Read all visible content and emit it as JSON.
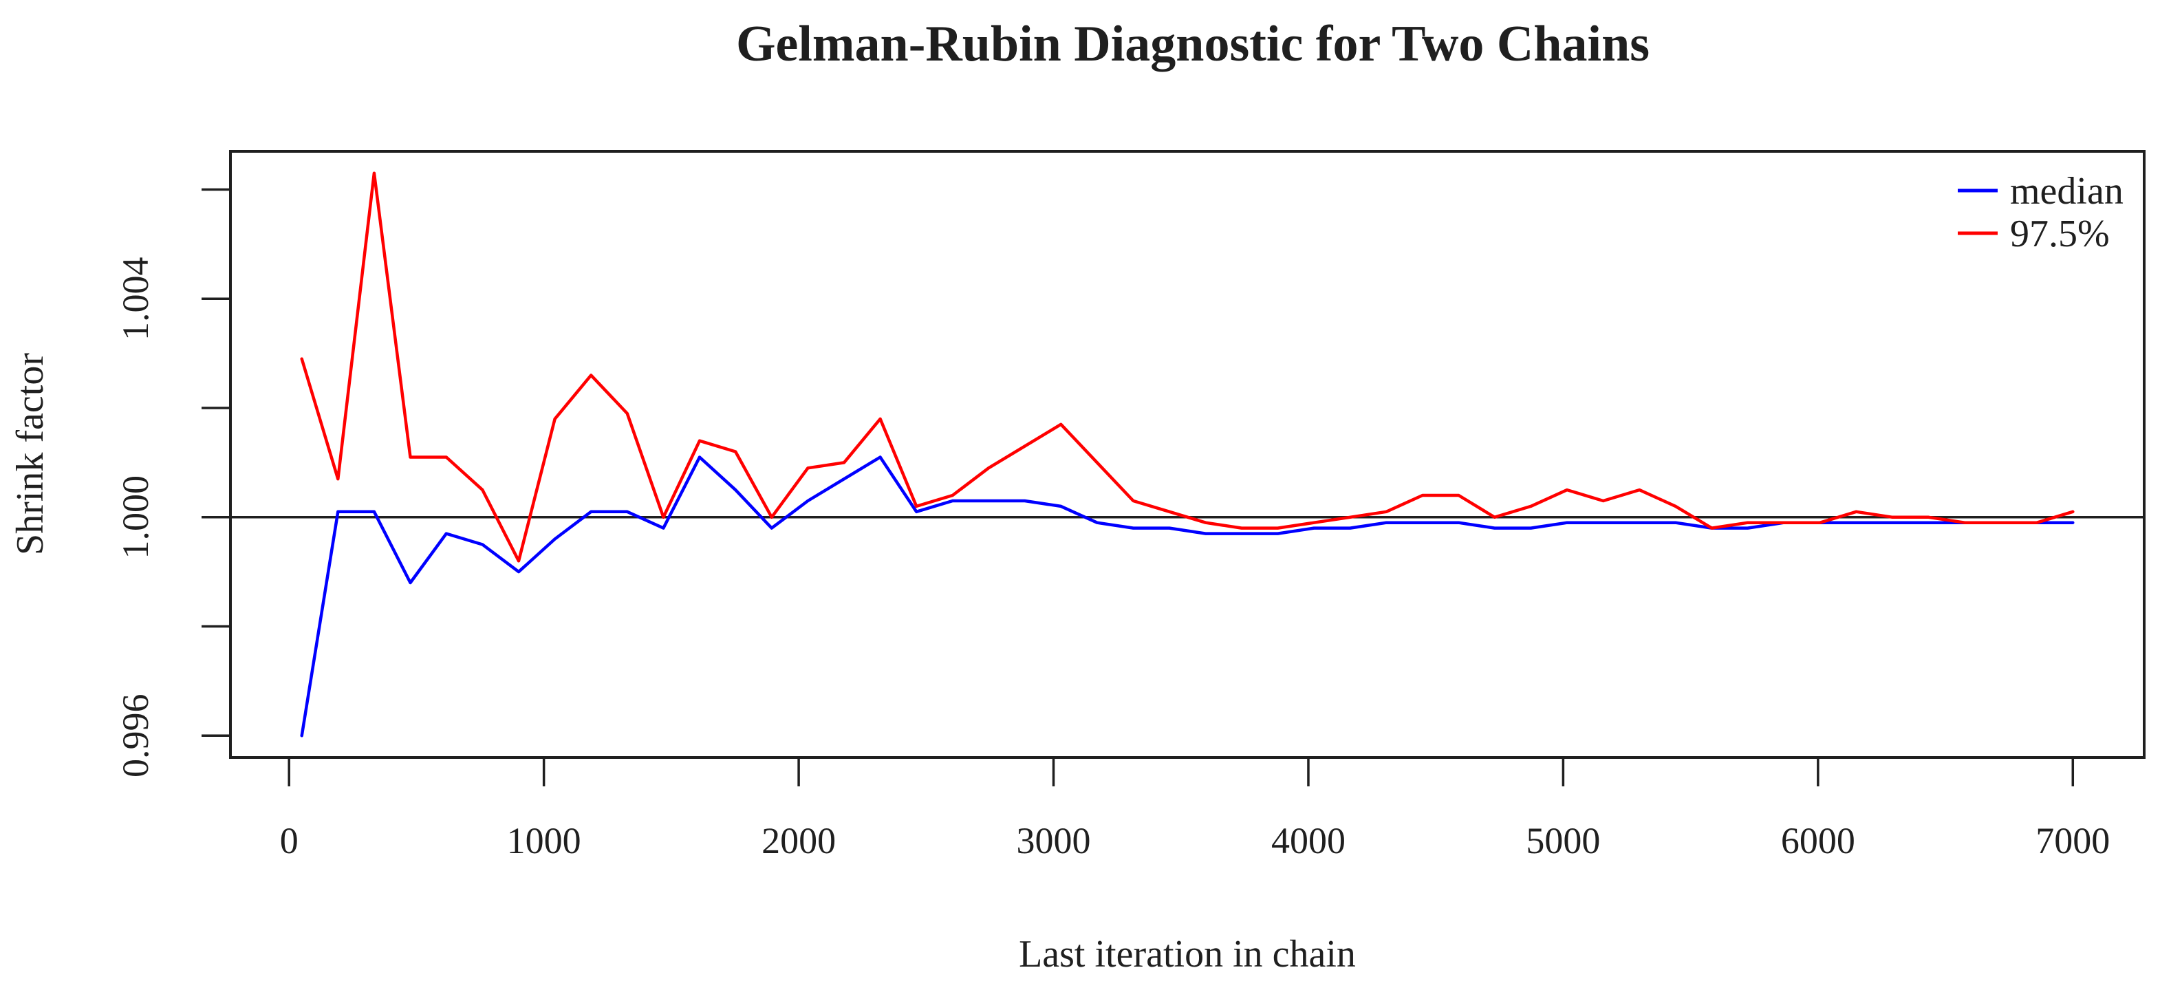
{
  "chart": {
    "title": "Gelman-Rubin Diagnostic for Two Chains",
    "xlabel": "Last iteration in chain",
    "ylabel": "Shrink factor",
    "legend": [
      {
        "label": "median",
        "color": "#0000ff"
      },
      {
        "label": "97.5%",
        "color": "#ff0000"
      }
    ]
  },
  "chart_data": {
    "type": "line",
    "title": "Gelman-Rubin Diagnostic for Two Chains",
    "xlabel": "Last iteration in chain",
    "ylabel": "Shrink factor",
    "grid": false,
    "legend_position": "topright",
    "axis_color": "#1f1f1f",
    "reference_line_y": 1.0,
    "xlim": [
      -230,
      7280
    ],
    "ylim": [
      0.9956,
      1.0067
    ],
    "x_ticks": [
      0,
      1000,
      2000,
      3000,
      4000,
      5000,
      6000,
      7000
    ],
    "x_tick_labels": [
      "0",
      "1000",
      "2000",
      "3000",
      "4000",
      "5000",
      "6000",
      "7000"
    ],
    "y_ticks_minor": [
      0.996,
      0.998,
      1.0,
      1.002,
      1.004,
      1.006
    ],
    "y_ticks_labeled": [
      0.996,
      1.0,
      1.004
    ],
    "y_tick_labels": [
      "0.996",
      "1.000",
      "1.004"
    ],
    "x": [
      50,
      192,
      334,
      476,
      617,
      759,
      901,
      1043,
      1185,
      1327,
      1469,
      1611,
      1752,
      1894,
      2036,
      2178,
      2320,
      2462,
      2604,
      2745,
      2887,
      3029,
      3171,
      3313,
      3455,
      3597,
      3738,
      3880,
      4022,
      4164,
      4306,
      4448,
      4590,
      4731,
      4873,
      5015,
      5157,
      5299,
      5441,
      5583,
      5724,
      5866,
      6008,
      6150,
      6292,
      6434,
      6576,
      6718,
      6859,
      7000
    ],
    "series": [
      {
        "name": "median",
        "color": "#0000ff",
        "values": [
          0.996,
          1.0001,
          1.0001,
          0.9988,
          0.9997,
          0.9995,
          0.999,
          0.9996,
          1.0001,
          1.0001,
          0.9998,
          1.0011,
          1.0005,
          0.9998,
          1.0003,
          1.0007,
          1.0011,
          1.0001,
          1.0003,
          1.0003,
          1.0003,
          1.0002,
          0.9999,
          0.9998,
          0.9998,
          0.9997,
          0.9997,
          0.9997,
          0.9998,
          0.9998,
          0.9999,
          0.9999,
          0.9999,
          0.9998,
          0.9998,
          0.9999,
          0.9999,
          0.9999,
          0.9999,
          0.9998,
          0.9998,
          0.9999,
          0.9999,
          0.9999,
          0.9999,
          0.9999,
          0.9999,
          0.9999,
          0.9999,
          0.9999
        ]
      },
      {
        "name": "97.5%",
        "color": "#ff0000",
        "values": [
          1.0029,
          1.0007,
          1.0063,
          1.0011,
          1.0011,
          1.0005,
          0.9992,
          1.0018,
          1.0026,
          1.0019,
          1.0,
          1.0014,
          1.0012,
          1.0,
          1.0009,
          1.001,
          1.0018,
          1.0002,
          1.0004,
          1.0009,
          1.0013,
          1.0017,
          1.001,
          1.0003,
          1.0001,
          0.9999,
          0.9998,
          0.9998,
          0.9999,
          1.0,
          1.0001,
          1.0004,
          1.0004,
          1.0,
          1.0002,
          1.0005,
          1.0003,
          1.0005,
          1.0002,
          0.9998,
          0.9999,
          0.9999,
          0.9999,
          1.0001,
          1.0,
          1.0,
          0.9999,
          0.9999,
          0.9999,
          1.0001
        ]
      }
    ]
  }
}
